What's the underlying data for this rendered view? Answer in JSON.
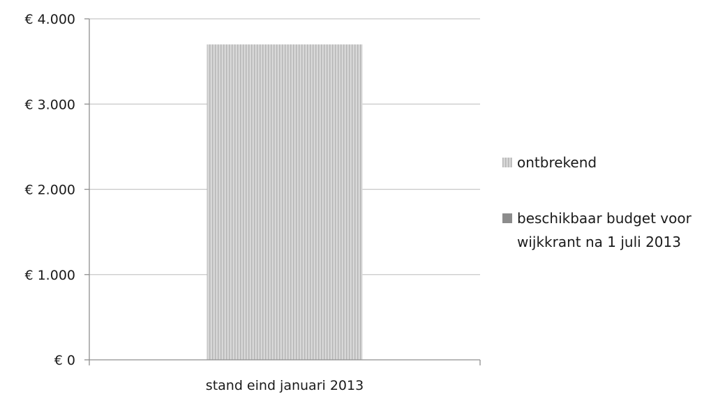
{
  "chart_data": {
    "type": "bar",
    "stacked": true,
    "categories": [
      "stand eind januari 2013"
    ],
    "series": [
      {
        "name": "beschikbaar budget voor wijkkrant na 1 juli 2013",
        "values": [
          0
        ],
        "color": "#8c8c8c",
        "pattern": "solid"
      },
      {
        "name": "ontbrekend",
        "values": [
          3700
        ],
        "color": "#d0d0d0",
        "pattern": "fine-vertical-stripes"
      }
    ],
    "yticks": [
      "€ 0",
      "€ 1.000",
      "€ 2.000",
      "€ 3.000",
      "€ 4.000"
    ],
    "ylim": [
      0,
      4000
    ],
    "grid": true,
    "legend_position": "right"
  }
}
